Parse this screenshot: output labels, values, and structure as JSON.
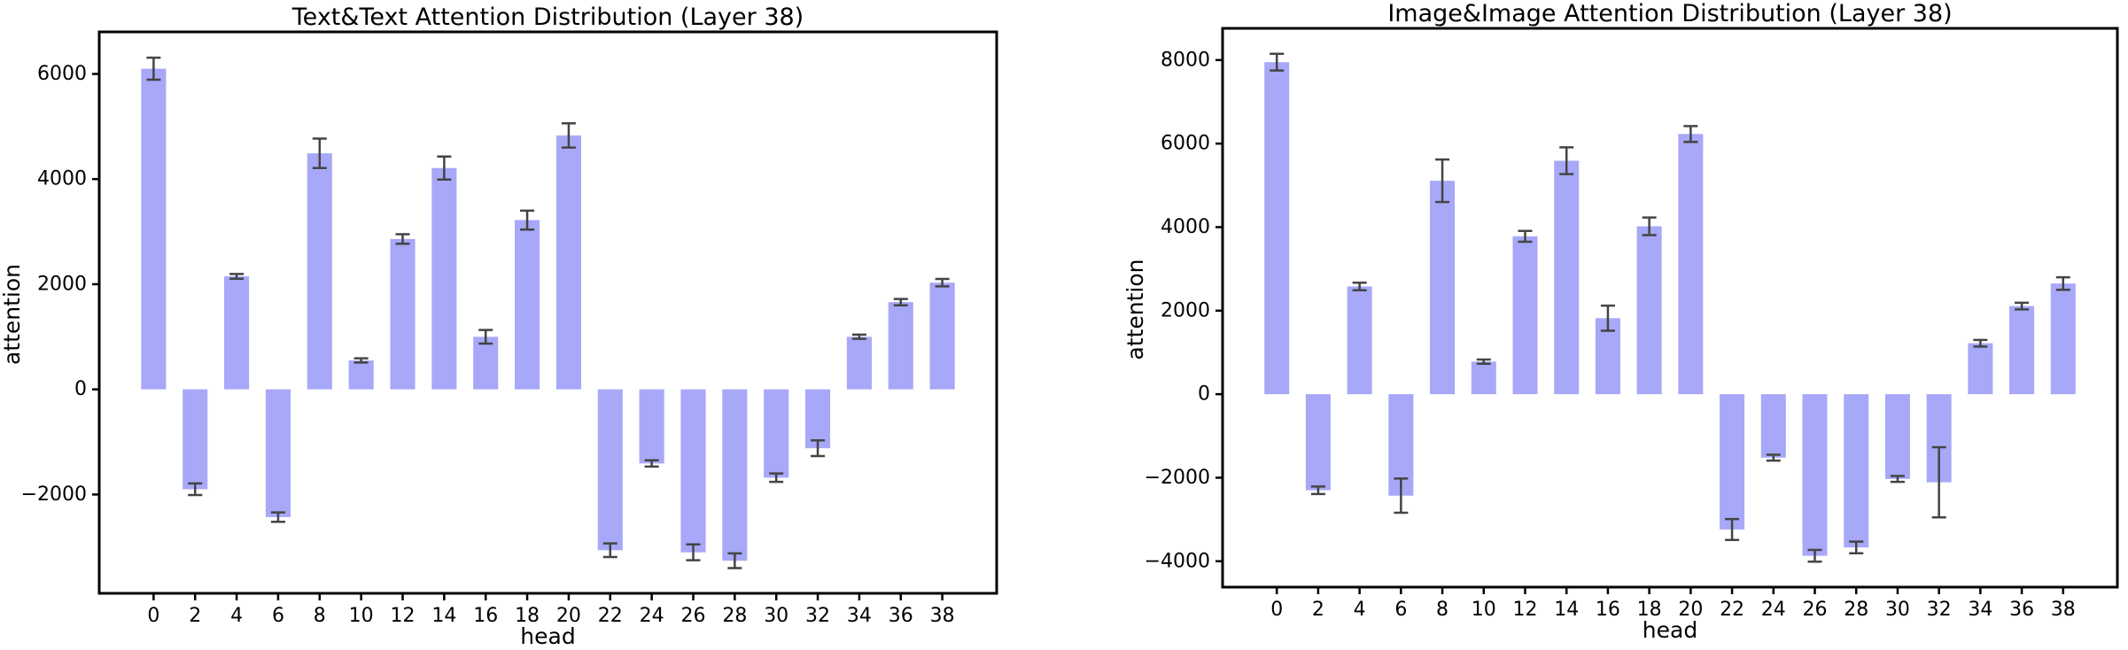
{
  "figure": {
    "background": "#ffffff"
  },
  "chart_data": [
    {
      "type": "bar",
      "title": "Text&Text Attention Distribution (Layer 38)",
      "xlabel": "head",
      "ylabel": "attention",
      "categories": [
        0,
        2,
        4,
        6,
        8,
        10,
        12,
        14,
        16,
        18,
        20,
        22,
        24,
        26,
        28,
        30,
        32,
        34,
        36,
        38
      ],
      "values": [
        6100,
        -1900,
        2150,
        -2430,
        4490,
        550,
        2860,
        4210,
        1000,
        3220,
        4830,
        -3060,
        -1410,
        -3100,
        -3260,
        -1680,
        -1120,
        1000,
        1660,
        2030
      ],
      "errors": [
        210,
        110,
        45,
        90,
        280,
        40,
        90,
        220,
        130,
        180,
        230,
        130,
        60,
        150,
        140,
        80,
        150,
        40,
        60,
        70
      ],
      "bar_color": "#a8a8f8",
      "error_color": "#444444",
      "axis_color": "#000000",
      "ylim": [
        -3880,
        6800
      ],
      "yticks": [
        -2000,
        0,
        2000,
        4000,
        6000
      ],
      "xlim": [
        -2.62,
        40.62
      ],
      "bar_width_units": 1.2,
      "grid": false,
      "legend": false
    },
    {
      "type": "bar",
      "title": "Image&Image Attention Distribution (Layer 38)",
      "xlabel": "head",
      "ylabel": "attention",
      "categories": [
        0,
        2,
        4,
        6,
        8,
        10,
        12,
        14,
        16,
        18,
        20,
        22,
        24,
        26,
        28,
        30,
        32,
        34,
        36,
        38
      ],
      "values": [
        7950,
        -2300,
        2580,
        -2430,
        5110,
        780,
        3780,
        5590,
        1820,
        4020,
        6230,
        -3240,
        -1520,
        -3870,
        -3670,
        -2030,
        -2110,
        1220,
        2110,
        2650
      ],
      "errors": [
        200,
        90,
        90,
        410,
        510,
        50,
        130,
        320,
        300,
        210,
        190,
        250,
        70,
        140,
        140,
        70,
        840,
        80,
        80,
        150
      ],
      "bar_color": "#a8a8f8",
      "error_color": "#444444",
      "axis_color": "#000000",
      "ylim": [
        -4620,
        8760
      ],
      "yticks": [
        -4000,
        -2000,
        0,
        2000,
        4000,
        6000,
        8000
      ],
      "xlim": [
        -2.62,
        40.62
      ],
      "bar_width_units": 1.2,
      "grid": false,
      "legend": false
    }
  ]
}
